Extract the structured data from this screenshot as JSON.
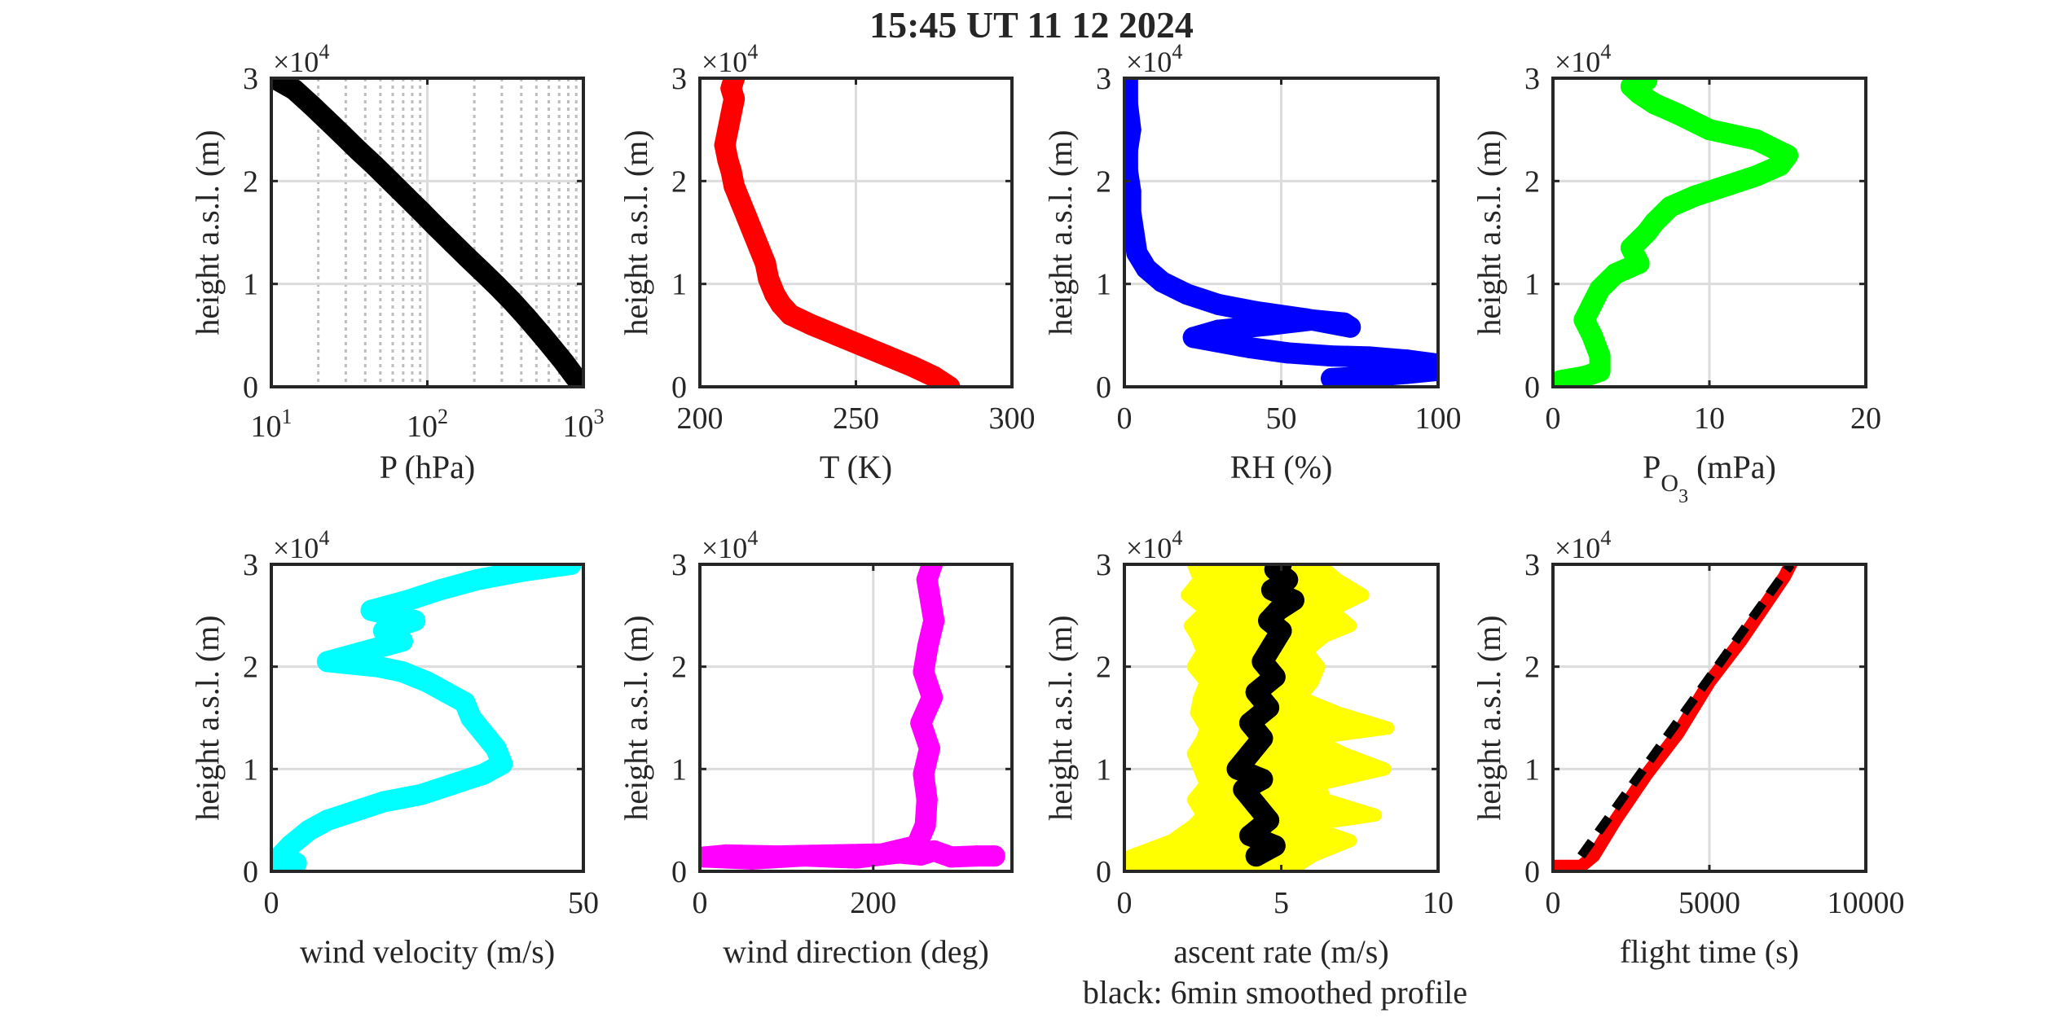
{
  "title": "15:45 UT  11 12 2024",
  "footnote": "black: 6min smoothed profile",
  "chart_data": [
    {
      "type": "scatter",
      "title": "",
      "xlabel": "P (hPa)",
      "ylabel": "height a.s.l. (m)",
      "xscale": "log",
      "xlim": [
        10,
        1000
      ],
      "ylim": [
        0,
        30000
      ],
      "xticks": [
        10,
        100,
        1000
      ],
      "xtick_labels": [
        {
          "base": "10",
          "exp": "1"
        },
        {
          "base": "10",
          "exp": "2"
        },
        {
          "base": "10",
          "exp": "3"
        }
      ],
      "yticks": [
        0,
        10000,
        20000,
        30000
      ],
      "ytick_labels": [
        "0",
        "1",
        "2",
        "3"
      ],
      "y_multiplier": {
        "base": "×10",
        "exp": "4"
      },
      "grid": true,
      "minor_grid": true,
      "series": [
        {
          "color": "#000000",
          "marker": "dot",
          "x": [
            1000,
            880,
            760,
            640,
            530,
            430,
            350,
            280,
            225,
            180,
            145,
            115,
            92,
            73,
            58,
            46,
            36,
            28.5,
            22.5,
            18,
            14,
            11,
            10
          ],
          "y": [
            0,
            1000,
            2300,
            3700,
            5200,
            6800,
            8300,
            9800,
            11200,
            12600,
            14000,
            15500,
            17000,
            18500,
            20000,
            21500,
            23000,
            24500,
            26000,
            27400,
            28900,
            29800,
            30000
          ]
        }
      ]
    },
    {
      "type": "scatter",
      "title": "",
      "xlabel": "T (K)",
      "ylabel": "height a.s.l. (m)",
      "xlim": [
        200,
        300
      ],
      "ylim": [
        0,
        30000
      ],
      "xticks": [
        200,
        250,
        300
      ],
      "xtick_labels": [
        "200",
        "250",
        "300"
      ],
      "yticks": [
        0,
        10000,
        20000,
        30000
      ],
      "ytick_labels": [
        "0",
        "1",
        "2",
        "3"
      ],
      "y_multiplier": {
        "base": "×10",
        "exp": "4"
      },
      "grid": true,
      "series": [
        {
          "color": "#ff0000",
          "marker": "dot",
          "x": [
            280,
            275,
            268,
            260,
            252,
            244,
            236,
            229,
            226,
            224,
            222,
            221,
            219,
            217,
            215,
            213,
            211,
            210,
            209,
            208,
            209,
            210,
            211,
            210,
            211
          ],
          "y": [
            0,
            1000,
            2000,
            3000,
            4000,
            5000,
            6000,
            7000,
            8000,
            9000,
            10500,
            12000,
            13500,
            15000,
            16500,
            18000,
            19500,
            21000,
            22000,
            23500,
            25000,
            26500,
            28000,
            29000,
            30000
          ]
        }
      ]
    },
    {
      "type": "scatter",
      "title": "",
      "xlabel": "RH (%)",
      "ylabel": "height a.s.l. (m)",
      "xlim": [
        0,
        100
      ],
      "ylim": [
        0,
        30000
      ],
      "xticks": [
        0,
        50,
        100
      ],
      "xtick_labels": [
        "0",
        "50",
        "100"
      ],
      "yticks": [
        0,
        10000,
        20000,
        30000
      ],
      "ytick_labels": [
        "0",
        "1",
        "2",
        "3"
      ],
      "y_multiplier": {
        "base": "×10",
        "exp": "4"
      },
      "grid": true,
      "series": [
        {
          "color": "#0000ff",
          "marker": "dot",
          "x": [
            66,
            78,
            90,
            100,
            100,
            90,
            78,
            66,
            52,
            40,
            22,
            30,
            46,
            60,
            70,
            72,
            58,
            42,
            30,
            20,
            12,
            7,
            4,
            3,
            2,
            2,
            1,
            1,
            2,
            1,
            1
          ],
          "y": [
            800,
            1000,
            1300,
            1600,
            2200,
            2600,
            2900,
            3000,
            3300,
            3800,
            4800,
            5500,
            6000,
            6500,
            6200,
            5800,
            6600,
            7300,
            8000,
            9000,
            10200,
            11500,
            13000,
            15000,
            17000,
            19000,
            21000,
            23000,
            25000,
            27500,
            30000
          ]
        }
      ]
    },
    {
      "type": "scatter",
      "title": "",
      "xlabel": {
        "base": "P",
        "sub": "O",
        "subsub": "3",
        "unit": "(mPa)"
      },
      "ylabel": "height a.s.l. (m)",
      "xlim": [
        0,
        20
      ],
      "ylim": [
        0,
        30000
      ],
      "xticks": [
        0,
        10,
        20
      ],
      "xtick_labels": [
        "0",
        "10",
        "20"
      ],
      "yticks": [
        0,
        10000,
        20000,
        30000
      ],
      "ytick_labels": [
        "0",
        "1",
        "2",
        "3"
      ],
      "y_multiplier": {
        "base": "×10",
        "exp": "4"
      },
      "grid": true,
      "series": [
        {
          "color": "#00ff00",
          "marker": "dot",
          "x": [
            0.5,
            2,
            3,
            3,
            2.5,
            2,
            2.5,
            3,
            4,
            5.5,
            5,
            6,
            6.5,
            7.5,
            9,
            11,
            13,
            14.5,
            15,
            13,
            10,
            8,
            6.5,
            5.5,
            5,
            6,
            6
          ],
          "y": [
            600,
            1000,
            1500,
            3000,
            5000,
            6500,
            8000,
            9500,
            11000,
            12000,
            13500,
            15000,
            16000,
            17500,
            18500,
            19500,
            20500,
            21500,
            22500,
            24000,
            25000,
            26500,
            27500,
            28500,
            29200,
            29800,
            30000
          ]
        }
      ]
    },
    {
      "type": "scatter",
      "title": "",
      "xlabel": "wind velocity (m/s)",
      "ylabel": "height a.s.l. (m)",
      "xlim": [
        0,
        50
      ],
      "ylim": [
        0,
        30000
      ],
      "xticks": [
        0,
        50
      ],
      "xtick_labels": [
        "0",
        "50"
      ],
      "yticks": [
        0,
        10000,
        20000,
        30000
      ],
      "ytick_labels": [
        "0",
        "1",
        "2",
        "3"
      ],
      "y_multiplier": {
        "base": "×10",
        "exp": "4"
      },
      "grid": true,
      "series": [
        {
          "color": "#00ffff",
          "marker": "dot",
          "x": [
            1,
            4,
            1,
            3,
            6,
            9,
            13,
            18,
            24,
            29,
            34,
            37,
            36,
            34,
            32,
            31,
            28,
            25,
            21,
            17,
            9,
            15,
            21,
            18,
            23,
            16,
            22,
            27,
            33,
            40,
            48
          ],
          "y": [
            0,
            800,
            1200,
            2500,
            4000,
            5000,
            5800,
            6800,
            7500,
            8500,
            9500,
            10500,
            12000,
            13500,
            15000,
            16500,
            17500,
            18500,
            19500,
            20000,
            20500,
            21500,
            22500,
            23500,
            24500,
            25500,
            26500,
            27500,
            28500,
            29300,
            30000
          ]
        }
      ]
    },
    {
      "type": "scatter",
      "title": "",
      "xlabel": "wind direction (deg)",
      "ylabel": "height a.s.l. (m)",
      "xlim": [
        0,
        360
      ],
      "ylim": [
        0,
        30000
      ],
      "xticks": [
        0,
        200
      ],
      "xtick_labels": [
        "0",
        "200"
      ],
      "yticks": [
        0,
        10000,
        20000,
        30000
      ],
      "ytick_labels": [
        "0",
        "1",
        "2",
        "3"
      ],
      "y_multiplier": {
        "base": "×10",
        "exp": "4"
      },
      "grid": true,
      "series": [
        {
          "color": "#ff00ff",
          "marker": "dot",
          "x": [
            340,
            320,
            290,
            270,
            255,
            230,
            180,
            120,
            60,
            5,
            30,
            90,
            150,
            210,
            250,
            260,
            262,
            258,
            265,
            255,
            268,
            258,
            263,
            270,
            266,
            262,
            268
          ],
          "y": [
            1500,
            1500,
            1400,
            2000,
            1600,
            1800,
            1300,
            1500,
            1200,
            1400,
            1600,
            1500,
            1600,
            1700,
            2500,
            4500,
            7000,
            9500,
            12000,
            14500,
            17000,
            19500,
            22000,
            24500,
            26500,
            28500,
            30000
          ]
        }
      ]
    },
    {
      "type": "scatter",
      "title": "",
      "xlabel": "ascent rate (m/s)",
      "ylabel": "height a.s.l. (m)",
      "xlim": [
        0,
        10
      ],
      "ylim": [
        0,
        30000
      ],
      "xticks": [
        0,
        5,
        10
      ],
      "xtick_labels": [
        "0",
        "5",
        "10"
      ],
      "yticks": [
        0,
        10000,
        20000,
        30000
      ],
      "ytick_labels": [
        "0",
        "1",
        "2",
        "3"
      ],
      "y_multiplier": {
        "base": "×10",
        "exp": "4"
      },
      "grid": true,
      "series": [
        {
          "color": "#ffff00",
          "marker": "band",
          "left": [
            0.1,
            0.2,
            1.5,
            2.2,
            2.5,
            2.2,
            2.6,
            2.4,
            2.2,
            2.5,
            2.6,
            2.3,
            2.4,
            2.6,
            2.2,
            2.5,
            2.3,
            2.1,
            2.6,
            2.0,
            2.4,
            2.2
          ],
          "right": [
            5.5,
            6.0,
            7.2,
            5.8,
            8.0,
            6.4,
            6.2,
            8.3,
            7.0,
            6.0,
            8.4,
            6.8,
            5.6,
            6.0,
            6.2,
            5.8,
            6.4,
            7.2,
            6.6,
            7.6,
            6.8,
            6.2
          ],
          "y": [
            500,
            1500,
            3000,
            4500,
            5500,
            7000,
            8500,
            10000,
            11500,
            13000,
            14000,
            15500,
            17000,
            18500,
            20000,
            21500,
            23000,
            24000,
            25500,
            27000,
            28500,
            30000
          ]
        },
        {
          "color": "#000000",
          "marker": "dot",
          "x": [
            4.2,
            4.8,
            4.0,
            4.6,
            4.2,
            3.8,
            4.4,
            3.6,
            4.0,
            4.4,
            4.0,
            4.6,
            4.2,
            4.8,
            4.4,
            4.7,
            5.0,
            4.6,
            4.9,
            5.4,
            4.7,
            5.2,
            4.8,
            5.0
          ],
          "y": [
            1500,
            2500,
            3500,
            5000,
            6500,
            8000,
            9000,
            10000,
            11500,
            13000,
            14500,
            16000,
            17500,
            19000,
            20500,
            22000,
            23500,
            24500,
            25500,
            26500,
            27500,
            28500,
            29500,
            30000
          ]
        }
      ]
    },
    {
      "type": "line",
      "title": "",
      "xlabel": "flight time (s)",
      "ylabel": "height a.s.l. (m)",
      "xlim": [
        0,
        10000
      ],
      "ylim": [
        0,
        30000
      ],
      "xticks": [
        0,
        5000,
        10000
      ],
      "xtick_labels": [
        "0",
        "5000",
        "10000"
      ],
      "yticks": [
        0,
        10000,
        20000,
        30000
      ],
      "ytick_labels": [
        "0",
        "1",
        "2",
        "3"
      ],
      "y_multiplier": {
        "base": "×10",
        "exp": "4"
      },
      "grid": true,
      "series": [
        {
          "color": "#ff0000",
          "marker": "thick-line",
          "x": [
            0,
            900,
            1300,
            2000,
            3000,
            4000,
            5000,
            6000,
            7000,
            7400,
            7600
          ],
          "y": [
            500,
            500,
            1500,
            5000,
            9500,
            13500,
            18500,
            22500,
            27000,
            28800,
            30000
          ]
        },
        {
          "color": "#000000",
          "marker": "dashed",
          "x": [
            900,
            7600
          ],
          "y": [
            1500,
            30000
          ]
        }
      ]
    }
  ]
}
